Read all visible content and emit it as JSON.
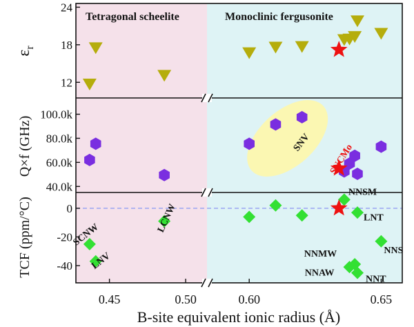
{
  "chart_data": {
    "type": "scatter",
    "xlabel": "B-site equivalent ionic radius (Å)",
    "x_ticks": [
      "0.45",
      "0.50",
      "0.60",
      "0.65"
    ],
    "x_segments": [
      {
        "xlim": [
          0.428,
          0.514
        ]
      },
      {
        "xlim": [
          0.584,
          0.658
        ]
      }
    ],
    "regions": [
      {
        "label": "Tetragonal scheelite",
        "x_from": 0.428,
        "x_to": 0.514,
        "color": "#f5e1ea"
      },
      {
        "label": "Monoclinic fergusonite",
        "x_from": 0.514,
        "x_to": 0.658,
        "color": "#def3f5"
      }
    ],
    "panels": [
      {
        "ylabel": "ε",
        "ylabel_sub": "r",
        "ylim": [
          9.5,
          24.6
        ],
        "y_ticks": [
          {
            "value": 12,
            "label": "12"
          },
          {
            "value": 18,
            "label": "18"
          },
          {
            "value": 24,
            "label": "24"
          }
        ],
        "marker": "triangle-down",
        "color": "#b5ad0c",
        "points": [
          {
            "x": 0.437,
            "y": 11.7
          },
          {
            "x": 0.441,
            "y": 17.5
          },
          {
            "x": 0.486,
            "y": 13.1
          },
          {
            "x": 0.6,
            "y": 16.7
          },
          {
            "x": 0.61,
            "y": 17.6
          },
          {
            "x": 0.62,
            "y": 17.7
          },
          {
            "x": 0.636,
            "y": 18.8
          },
          {
            "x": 0.638,
            "y": 18.9
          },
          {
            "x": 0.64,
            "y": 19.3
          },
          {
            "x": 0.641,
            "y": 21.8
          },
          {
            "x": 0.65,
            "y": 19.8
          }
        ],
        "stars": [
          {
            "x": 0.634,
            "y": 17.2
          }
        ]
      },
      {
        "ylabel": "Q×f (GHz)",
        "ylim": [
          35000,
          113500
        ],
        "y_ticks": [
          {
            "value": 40000,
            "label": "40.0k"
          },
          {
            "value": 60000,
            "label": "60.0k"
          },
          {
            "value": 80000,
            "label": "80.0k"
          },
          {
            "value": 100000,
            "label": "100.0k"
          }
        ],
        "marker": "hexagon",
        "color": "#7a2ee0",
        "points": [
          {
            "x": 0.437,
            "y": 62000
          },
          {
            "x": 0.441,
            "y": 75500
          },
          {
            "x": 0.486,
            "y": 49500
          },
          {
            "x": 0.6,
            "y": 75500
          },
          {
            "x": 0.61,
            "y": 91500
          },
          {
            "x": 0.62,
            "y": 97500
          },
          {
            "x": 0.636,
            "y": 52500
          },
          {
            "x": 0.638,
            "y": 59000
          },
          {
            "x": 0.64,
            "y": 65500
          },
          {
            "x": 0.641,
            "y": 50500
          },
          {
            "x": 0.65,
            "y": 73000
          }
        ],
        "stars": [
          {
            "x": 0.634,
            "y": 55000
          }
        ],
        "ellipse_label": "SNV",
        "star_label": "SNCMo"
      },
      {
        "ylabel": "TCF (ppm/°C)",
        "ylim": [
          -52,
          11
        ],
        "y_ticks": [
          {
            "value": 0,
            "label": "0"
          },
          {
            "value": -20,
            "label": "-20"
          },
          {
            "value": -40,
            "label": "-40"
          }
        ],
        "marker": "diamond",
        "color": "#33e033",
        "zero_line": true,
        "points": [
          {
            "x": 0.437,
            "y": -25,
            "label": "SCNW"
          },
          {
            "x": 0.441,
            "y": -37,
            "label": "LNV"
          },
          {
            "x": 0.486,
            "y": -9,
            "label": "LCNW"
          },
          {
            "x": 0.6,
            "y": -6
          },
          {
            "x": 0.61,
            "y": 2
          },
          {
            "x": 0.62,
            "y": -5
          },
          {
            "x": 0.636,
            "y": 6,
            "label": "NNSM"
          },
          {
            "x": 0.641,
            "y": -3,
            "label": "LNT"
          },
          {
            "x": 0.65,
            "y": -23,
            "label": "NNS"
          },
          {
            "x": 0.64,
            "y": -39,
            "label": "NNMW"
          },
          {
            "x": 0.638,
            "y": -41,
            "label": "NNAW"
          },
          {
            "x": 0.641,
            "y": -45,
            "label": "NNT"
          }
        ],
        "stars": [
          {
            "x": 0.634,
            "y": 0
          }
        ]
      }
    ]
  }
}
